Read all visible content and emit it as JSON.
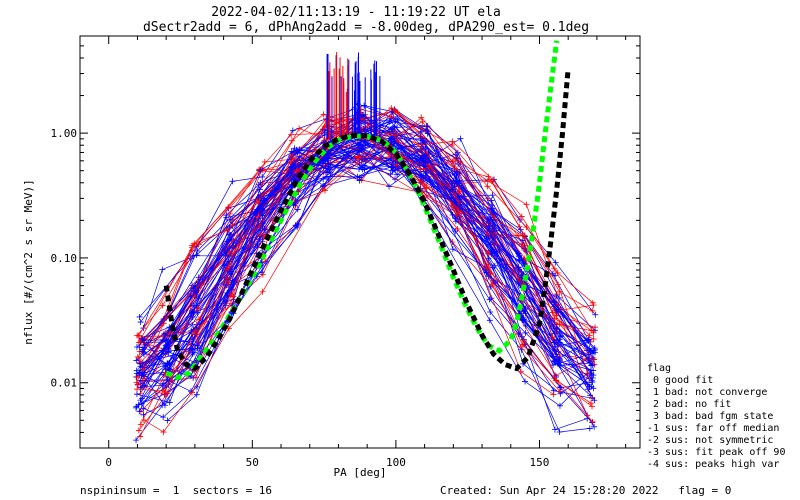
{
  "chart_data": {
    "type": "line",
    "title": "2022-04-02/11:13:19 - 11:19:22 UT ela",
    "subtitle": "dSectr2add = 6, dPhAng2add = -8.00deg, dPA290_est=   0.1deg",
    "xlabel": "PA [deg]",
    "ylabel": "nflux [#/(cm^2 s sr MeV)]",
    "xlim": [
      -10,
      185
    ],
    "ylim": [
      0.003,
      6.0
    ],
    "yscale": "log",
    "x_ticks": [
      0,
      50,
      100,
      150
    ],
    "x_tick_labels": [
      "0",
      "50",
      "100",
      "150"
    ],
    "y_ticks": [
      0.01,
      0.1,
      1.0
    ],
    "y_tick_labels": [
      "0.01",
      "0.10",
      "1.00"
    ],
    "grid": false,
    "colors": {
      "red": "#ff0000",
      "blue": "#0000ff",
      "green": "#00ff00",
      "black": "#000000"
    },
    "series": [
      {
        "color": "#00ff00",
        "style": "dotted-thick",
        "x": [
          20,
          24,
          28,
          32,
          36,
          40,
          44,
          48,
          52,
          56,
          60,
          64,
          68,
          72,
          76,
          80,
          84,
          88,
          92,
          96,
          100,
          104,
          108,
          112,
          116,
          120,
          124,
          128,
          132,
          136,
          140,
          142,
          144,
          146,
          148,
          150,
          152,
          154,
          156
        ],
        "y": [
          0.012,
          0.011,
          0.012,
          0.016,
          0.021,
          0.029,
          0.041,
          0.058,
          0.085,
          0.13,
          0.2,
          0.3,
          0.44,
          0.6,
          0.76,
          0.88,
          0.93,
          0.95,
          0.93,
          0.85,
          0.7,
          0.5,
          0.33,
          0.2,
          0.12,
          0.07,
          0.043,
          0.028,
          0.02,
          0.018,
          0.022,
          0.03,
          0.05,
          0.09,
          0.18,
          0.4,
          1.0,
          2.4,
          5.5
        ]
      },
      {
        "color": "#000000",
        "style": "dotted-thick",
        "x": [
          20,
          22,
          24,
          27,
          30,
          34,
          38,
          42,
          46,
          50,
          55,
          60,
          65,
          70,
          75,
          80,
          85,
          90,
          95,
          100,
          105,
          110,
          115,
          120,
          125,
          130,
          134,
          138,
          142,
          146,
          150,
          152,
          154,
          156,
          158,
          160
        ],
        "y": [
          0.06,
          0.03,
          0.018,
          0.014,
          0.013,
          0.016,
          0.022,
          0.032,
          0.05,
          0.08,
          0.14,
          0.24,
          0.4,
          0.6,
          0.78,
          0.9,
          0.96,
          0.95,
          0.86,
          0.68,
          0.46,
          0.28,
          0.15,
          0.08,
          0.042,
          0.024,
          0.017,
          0.014,
          0.013,
          0.016,
          0.03,
          0.06,
          0.14,
          0.35,
          1.0,
          3.3
        ]
      }
    ],
    "legend": {
      "title": "flag",
      "entries": [
        " 0 good fit",
        " 1 bad: not converge",
        " 2 bad: no fit",
        " 3 bad: bad fgm state",
        "-1 sus: far off median",
        "-2 sus: not symmetric",
        "-3 sus: fit peak off 90",
        "-4 sus: peaks high var"
      ],
      "placement": "right"
    },
    "footer": {
      "left": "nspininsum =  1  sectors = 16",
      "right": "Created: Sun Apr 24 15:28:20 2022   flag = 0"
    }
  }
}
